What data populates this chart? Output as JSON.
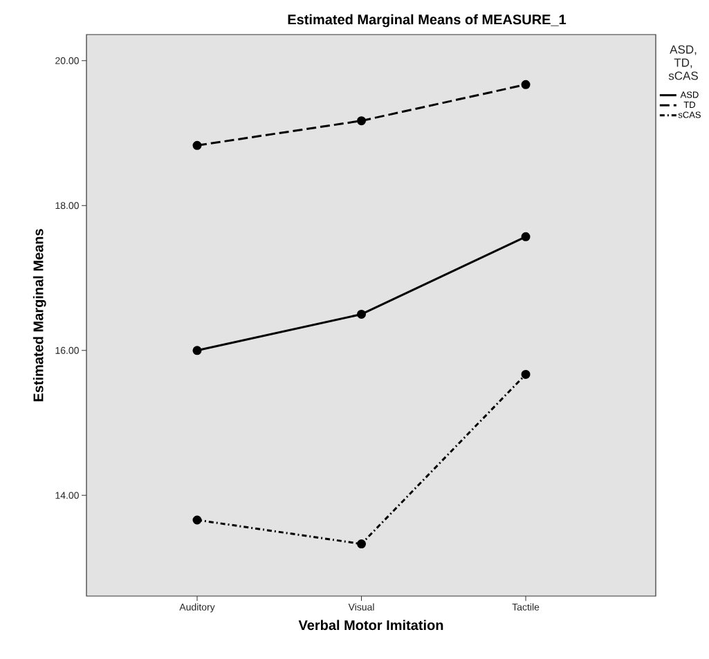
{
  "chart_data": {
    "type": "line",
    "title": "Estimated Marginal Means of MEASURE_1",
    "xlabel": "Verbal Motor Imitation",
    "ylabel": "Estimated Marginal Means",
    "legend_title": "ASD, TD, sCAS",
    "categories": [
      "Auditory",
      "Visual",
      "Tactile"
    ],
    "series": [
      {
        "name": "ASD",
        "color": "#000000",
        "values": [
          16.0,
          16.5,
          17.57
        ],
        "line_style": "solid"
      },
      {
        "name": "TD",
        "color": "#000000",
        "values": [
          18.83,
          19.17,
          19.67
        ],
        "line_style": "dashed"
      },
      {
        "name": "sCAS",
        "color": "#000000",
        "values": [
          13.66,
          13.33,
          15.67
        ],
        "line_style": "dotted"
      }
    ],
    "ylim": [
      12.61,
      20.36
    ],
    "yticks": [
      {
        "value": 14,
        "label": "14.00"
      },
      {
        "value": 16,
        "label": "16.00"
      },
      {
        "value": 18,
        "label": "18.00"
      },
      {
        "value": 20,
        "label": "20.00"
      }
    ],
    "marker": "circle",
    "legend": "right",
    "grid": false
  }
}
